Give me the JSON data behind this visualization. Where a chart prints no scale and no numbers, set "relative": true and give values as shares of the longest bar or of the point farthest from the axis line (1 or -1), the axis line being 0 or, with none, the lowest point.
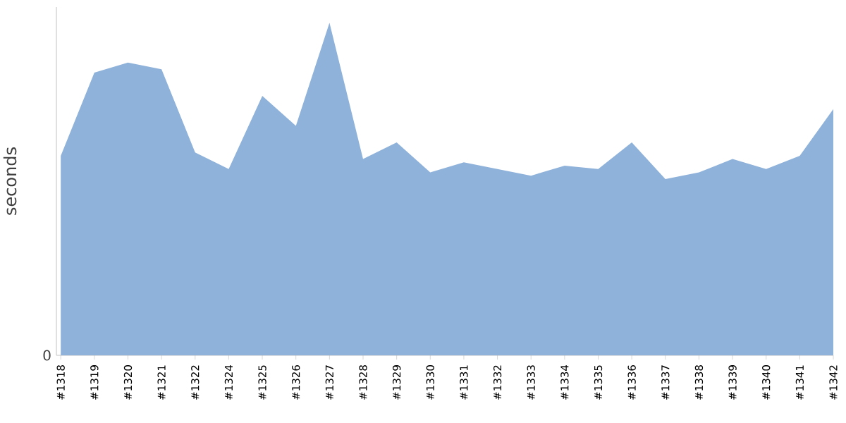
{
  "chart_data": {
    "type": "area",
    "ylabel": "seconds",
    "relative": true,
    "annotations": [
      "0"
    ],
    "categories": [
      "#1318",
      "#1319",
      "#1320",
      "#1321",
      "#1322",
      "#1324",
      "#1325",
      "#1326",
      "#1327",
      "#1328",
      "#1329",
      "#1330",
      "#1331",
      "#1332",
      "#1333",
      "#1334",
      "#1335",
      "#1336",
      "#1337",
      "#1338",
      "#1339",
      "#1340",
      "#1341",
      "#1342"
    ],
    "series": [
      {
        "color": "#8fb2da",
        "values": [
          0.6,
          0.85,
          0.88,
          0.86,
          0.61,
          0.56,
          0.78,
          0.69,
          1,
          0.59,
          0.64,
          0.55,
          0.58,
          0.56,
          0.54,
          0.57,
          0.56,
          0.64,
          0.53,
          0.55,
          0.59,
          0.56,
          0.6,
          0.74
        ]
      }
    ]
  }
}
